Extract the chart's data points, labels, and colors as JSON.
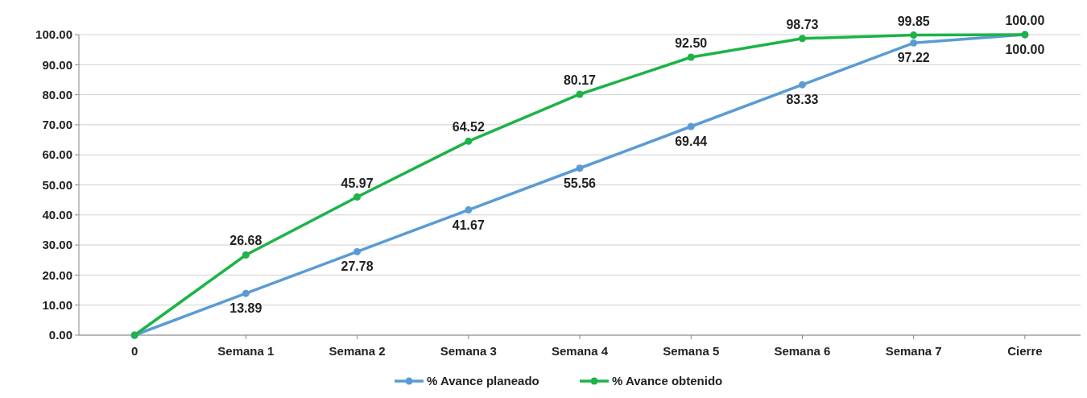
{
  "chart_data": {
    "type": "line",
    "categories": [
      "0",
      "Semana 1",
      "Semana 2",
      "Semana 3",
      "Semana 4",
      "Semana 5",
      "Semana 6",
      "Semana 7",
      "Cierre"
    ],
    "series": [
      {
        "name": "% Avance planeado",
        "color": "#5b9bd5",
        "values": [
          0,
          13.89,
          27.78,
          41.67,
          55.56,
          69.44,
          83.33,
          97.22,
          100
        ],
        "value_labels": [
          null,
          "13.89",
          "27.78",
          "41.67",
          "55.56",
          "69.44",
          "83.33",
          "97.22",
          "100.00"
        ]
      },
      {
        "name": "% Avance obtenido",
        "color": "#1db347",
        "values": [
          0,
          26.68,
          45.97,
          64.52,
          80.17,
          92.5,
          98.73,
          99.85,
          100
        ],
        "value_labels": [
          null,
          "26.68",
          "45.97",
          "64.52",
          "80.17",
          "92.50",
          "98.73",
          "99.85",
          "100.00"
        ]
      }
    ],
    "ylim": [
      0,
      100
    ],
    "yticks": [
      {
        "value": 0,
        "label": "0.00"
      },
      {
        "value": 10,
        "label": "10.00"
      },
      {
        "value": 20,
        "label": "20.00"
      },
      {
        "value": 30,
        "label": "30.00"
      },
      {
        "value": 40,
        "label": "40.00"
      },
      {
        "value": 50,
        "label": "50.00"
      },
      {
        "value": 60,
        "label": "60.00"
      },
      {
        "value": 70,
        "label": "70.00"
      },
      {
        "value": 80,
        "label": "80.00"
      },
      {
        "value": 90,
        "label": "90.00"
      },
      {
        "value": 100,
        "label": "100.00"
      }
    ],
    "grid": "y",
    "legend": "bottom",
    "marker": "circle",
    "line_style": "solid"
  }
}
